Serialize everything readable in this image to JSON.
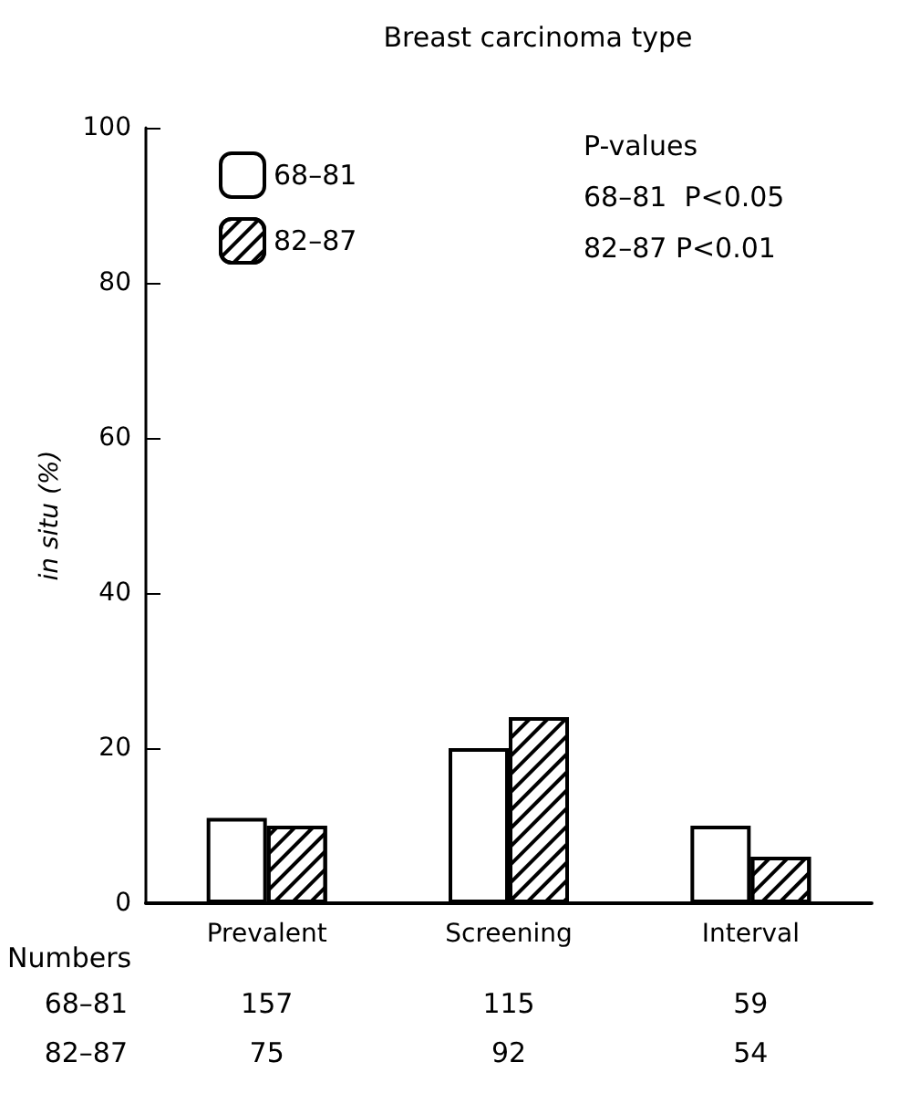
{
  "chart_data": {
    "type": "bar",
    "title": "Breast carcinoma type",
    "ylabel": "in situ (%)",
    "categories": [
      "Prevalent",
      "Screening",
      "Interval"
    ],
    "series": [
      {
        "name": "68–81",
        "color": "#ffffff",
        "values": [
          11,
          20,
          10
        ]
      },
      {
        "name": "82–87",
        "color": "#000000",
        "values": [
          10,
          24,
          6
        ]
      }
    ],
    "ylim": [
      0,
      100
    ],
    "yticks": [
      0,
      20,
      40,
      60,
      80,
      100
    ],
    "grid": false,
    "legend": "top left",
    "annotations": [
      "P-values",
      "68–81  P<0.05",
      "82–87 P<0.01",
      "Numbers",
      "68–81",
      "157",
      "115",
      "59",
      "82–87",
      "75",
      "92",
      "54"
    ]
  }
}
